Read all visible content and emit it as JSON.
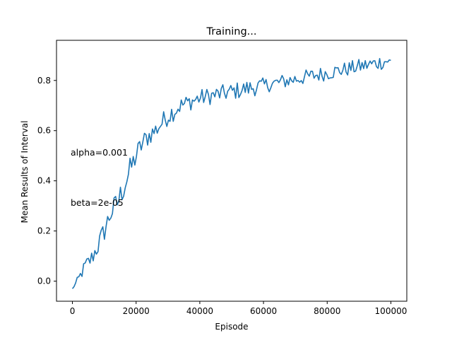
{
  "chart_data": {
    "type": "line",
    "title": "Training...",
    "xlabel": "Episode",
    "ylabel": "Mean Results of Interval",
    "xlim": [
      -5000,
      105000
    ],
    "ylim": [
      -0.08,
      0.96
    ],
    "x_ticks": [
      0,
      20000,
      40000,
      60000,
      80000,
      100000
    ],
    "x_tick_labels": [
      "0",
      "20000",
      "40000",
      "60000",
      "80000",
      "100000"
    ],
    "y_ticks": [
      0.0,
      0.2,
      0.4,
      0.6,
      0.8
    ],
    "y_tick_labels": [
      "0.0",
      "0.2",
      "0.4",
      "0.6",
      "0.8"
    ],
    "grid": false,
    "legend": "none",
    "annotations": [
      {
        "text": "alpha=0.001",
        "x": 0,
        "y": 0.5
      },
      {
        "text": "beta=2e-05",
        "x": 0,
        "y": 0.3
      }
    ],
    "series": [
      {
        "color": "#1f77b4",
        "anchors_x": [
          0,
          2000,
          4000,
          6000,
          8000,
          10000,
          12000,
          14000,
          16000,
          18000,
          20000,
          22000,
          24000,
          26000,
          28000,
          30000,
          32000,
          34000,
          36000,
          38000,
          40000,
          42000,
          44000,
          46000,
          48000,
          50000,
          52000,
          54000,
          56000,
          58000,
          60000,
          62000,
          64000,
          66000,
          68000,
          70000,
          72000,
          74000,
          76000,
          78000,
          80000,
          82000,
          84000,
          86000,
          88000,
          90000,
          92000,
          94000,
          96000,
          98000,
          100000
        ],
        "anchors_y": [
          -0.03,
          0.01,
          0.06,
          0.09,
          0.14,
          0.2,
          0.27,
          0.31,
          0.37,
          0.44,
          0.5,
          0.55,
          0.58,
          0.6,
          0.63,
          0.66,
          0.68,
          0.7,
          0.71,
          0.72,
          0.73,
          0.735,
          0.74,
          0.745,
          0.75,
          0.755,
          0.76,
          0.765,
          0.77,
          0.775,
          0.78,
          0.785,
          0.79,
          0.795,
          0.8,
          0.805,
          0.81,
          0.815,
          0.82,
          0.825,
          0.83,
          0.835,
          0.84,
          0.845,
          0.85,
          0.855,
          0.86,
          0.865,
          0.87,
          0.875,
          0.88
        ],
        "noise_amplitude": [
          0.0,
          0.02,
          0.03,
          0.035,
          0.04,
          0.045,
          0.045,
          0.05,
          0.05,
          0.05,
          0.045,
          0.045,
          0.04,
          0.04,
          0.04,
          0.04,
          0.04,
          0.035,
          0.035,
          0.035,
          0.035,
          0.035,
          0.035,
          0.035,
          0.035,
          0.035,
          0.035,
          0.035,
          0.035,
          0.035,
          0.03,
          0.03,
          0.03,
          0.03,
          0.03,
          0.03,
          0.03,
          0.03,
          0.03,
          0.03,
          0.03,
          0.03,
          0.03,
          0.03,
          0.03,
          0.03,
          0.03,
          0.03,
          0.03,
          0.03,
          0.0
        ],
        "point_count": 200
      }
    ]
  }
}
